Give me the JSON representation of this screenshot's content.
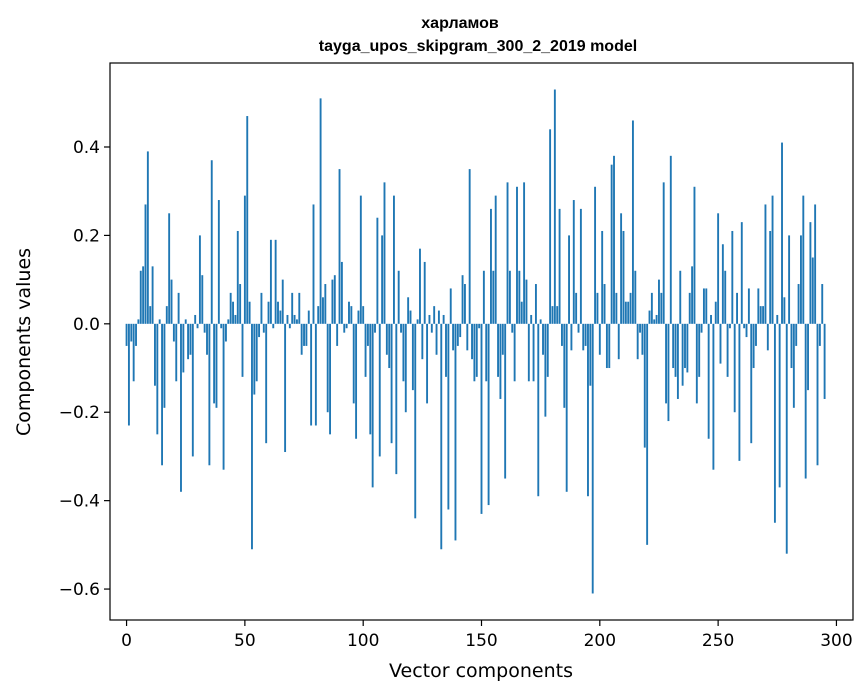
{
  "chart_data": {
    "type": "bar",
    "title": "харламов",
    "subtitle": "tayga_upos_skipgram_300_2_2019 model",
    "xlabel": "Vector components",
    "ylabel": "Components values",
    "xlim": [
      -7,
      307
    ],
    "ylim": [
      -0.67,
      0.59
    ],
    "xticks": [
      0,
      50,
      100,
      150,
      200,
      250,
      300
    ],
    "xtick_labels": [
      "0",
      "50",
      "100",
      "150",
      "200",
      "250",
      "300"
    ],
    "yticks": [
      -0.6,
      -0.4,
      -0.2,
      0.0,
      0.2,
      0.4
    ],
    "ytick_labels": [
      "−0.6",
      "−0.4",
      "−0.2",
      "0.0",
      "0.2",
      "0.4"
    ],
    "grid": false,
    "color": "#1f77b4",
    "values": [
      -0.05,
      -0.23,
      -0.04,
      -0.13,
      -0.05,
      0.01,
      0.12,
      0.13,
      0.27,
      0.39,
      0.04,
      0.13,
      -0.14,
      -0.25,
      0.01,
      -0.32,
      -0.19,
      0.04,
      0.25,
      0.1,
      -0.04,
      -0.13,
      0.07,
      -0.38,
      -0.11,
      0.01,
      -0.08,
      -0.07,
      -0.3,
      0.02,
      -0.01,
      0.2,
      0.11,
      -0.02,
      -0.07,
      -0.32,
      0.37,
      -0.18,
      -0.19,
      0.28,
      -0.01,
      -0.33,
      -0.04,
      0.01,
      0.07,
      0.05,
      0.02,
      0.21,
      0.09,
      -0.12,
      0.29,
      0.47,
      0.05,
      -0.51,
      -0.16,
      -0.13,
      -0.03,
      0.07,
      -0.02,
      -0.27,
      0.05,
      0.19,
      -0.01,
      0.19,
      0.05,
      0.03,
      0.1,
      -0.29,
      0.02,
      -0.01,
      0.07,
      0.02,
      0.01,
      0.07,
      -0.07,
      -0.05,
      -0.05,
      0.03,
      -0.23,
      0.27,
      -0.23,
      0.04,
      0.51,
      0.06,
      0.09,
      -0.2,
      -0.25,
      0.1,
      0.11,
      -0.05,
      0.35,
      0.14,
      -0.02,
      -0.01,
      0.05,
      0.04,
      -0.18,
      -0.26,
      0.03,
      0.29,
      0.04,
      -0.12,
      -0.05,
      -0.25,
      -0.37,
      -0.02,
      0.24,
      -0.3,
      0.2,
      0.32,
      -0.07,
      -0.1,
      -0.27,
      0.29,
      -0.34,
      0.12,
      -0.02,
      -0.13,
      -0.2,
      0.06,
      0.03,
      -0.15,
      -0.44,
      0.01,
      0.17,
      -0.08,
      0.14,
      -0.18,
      0.02,
      -0.02,
      0.04,
      -0.07,
      0.03,
      -0.51,
      0.02,
      -0.12,
      -0.42,
      0.08,
      -0.06,
      -0.49,
      -0.05,
      -0.03,
      0.11,
      0.09,
      -0.06,
      0.35,
      -0.08,
      -0.13,
      -0.12,
      -0.01,
      -0.43,
      0.12,
      -0.13,
      -0.41,
      0.26,
      0.12,
      0.29,
      -0.12,
      -0.17,
      -0.07,
      -0.35,
      0.32,
      0.12,
      -0.02,
      -0.13,
      0.31,
      0.12,
      0.05,
      0.32,
      0.1,
      -0.13,
      0.02,
      -0.13,
      0.09,
      -0.39,
      0.01,
      -0.07,
      -0.21,
      -0.12,
      0.44,
      0.04,
      0.53,
      0.04,
      0.26,
      -0.05,
      -0.19,
      -0.38,
      0.2,
      -0.06,
      0.28,
      0.07,
      -0.02,
      0.26,
      -0.06,
      -0.05,
      -0.39,
      -0.14,
      -0.61,
      0.31,
      0.07,
      -0.07,
      0.21,
      0.09,
      -0.1,
      -0.1,
      0.36,
      0.38,
      0.07,
      -0.08,
      0.25,
      0.21,
      0.05,
      0.05,
      0.07,
      0.46,
      0.12,
      -0.08,
      -0.02,
      -0.07,
      -0.28,
      -0.5,
      0.03,
      0.07,
      0.01,
      0.02,
      0.1,
      0.07,
      0.32,
      -0.18,
      -0.22,
      0.38,
      -0.1,
      -0.12,
      -0.17,
      0.12,
      -0.14,
      -0.1,
      -0.11,
      0.07,
      0.13,
      0.31,
      -0.18,
      -0.12,
      -0.02,
      0.08,
      0.08,
      -0.26,
      0.02,
      -0.33,
      0.05,
      0.25,
      -0.09,
      0.18,
      0.12,
      -0.12,
      -0.01,
      0.21,
      -0.2,
      0.07,
      -0.31,
      0.23,
      -0.01,
      -0.03,
      0.08,
      -0.27,
      -0.1,
      -0.05,
      0.08,
      0.04,
      0.04,
      0.27,
      -0.06,
      0.21,
      0.29,
      -0.45,
      0.02,
      -0.37,
      0.41,
      0.06,
      -0.52,
      0.2,
      -0.1,
      -0.19,
      -0.05,
      0.09,
      0.2,
      0.29,
      -0.35,
      -0.15,
      0.23,
      0.15,
      0.27,
      -0.32,
      -0.05,
      0.09,
      -0.17
    ]
  }
}
